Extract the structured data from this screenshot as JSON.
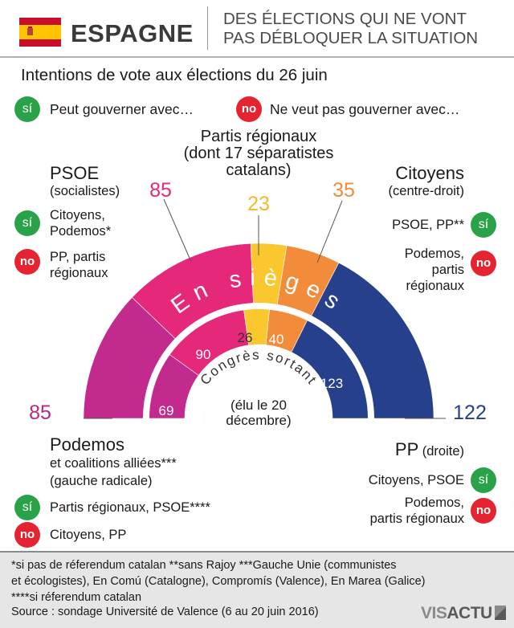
{
  "header": {
    "country": "ESPAGNE",
    "headline_1": "DES ÉLECTIONS QUI NE VONT",
    "headline_2": "PAS DÉBLOQUER LA SITUATION"
  },
  "subtitle": "Intentions de vote aux élections du 26 juin",
  "legend": {
    "si_badge": "sí",
    "si_text": "Peut gouverner avec…",
    "no_badge": "no",
    "no_text": "Ne veut pas gouverner avec…"
  },
  "parties": {
    "psoe": {
      "name": "PSOE",
      "sub": "(socialistes)",
      "si": [
        "Citoyens,",
        "Podemos*"
      ],
      "no": [
        "PP, partis",
        "régionaux"
      ]
    },
    "regional": {
      "name_1": "Partis régionaux",
      "name_2": "(dont 17 séparatistes",
      "name_3": "catalans)"
    },
    "citoyens": {
      "name": "Citoyens",
      "sub": "(centre-droit)",
      "si": [
        "PSOE, PP**"
      ],
      "no": [
        "Podemos,",
        "partis",
        "régionaux"
      ]
    },
    "podemos": {
      "name": "Podemos",
      "sub_1": "et coalitions alliées***",
      "sub_2": "(gauche radicale)",
      "si": [
        "Partis régionaux, PSOE****"
      ],
      "no": [
        "Citoyens, PP"
      ]
    },
    "pp": {
      "name": "PP",
      "sub": "(droite)",
      "si": [
        "Citoyens, PSOE"
      ],
      "no": [
        "Podemos,",
        "partis régionaux"
      ]
    }
  },
  "chart_data": {
    "type": "pie",
    "subtype": "parliament-hemicycle",
    "title": "Intentions de vote aux élections du 26 juin",
    "unit": "sièges",
    "outer_ring": {
      "label": "En sièges",
      "series": [
        {
          "name": "Podemos",
          "value": 85,
          "color": "#c22a8e"
        },
        {
          "name": "PSOE",
          "value": 85,
          "color": "#e5287a"
        },
        {
          "name": "Partis régionaux",
          "value": 23,
          "color": "#fbc72e"
        },
        {
          "name": "Citoyens",
          "value": 35,
          "color": "#f28c3b"
        },
        {
          "name": "PP",
          "value": 122,
          "color": "#27408b"
        }
      ]
    },
    "inner_ring": {
      "label": "Congrès sortant",
      "note_1": "(élu le 20",
      "note_2": "décembre)",
      "series": [
        {
          "name": "Podemos",
          "value": 69,
          "color": "#c22a8e"
        },
        {
          "name": "PSOE",
          "value": 90,
          "color": "#e5287a"
        },
        {
          "name": "Partis régionaux",
          "value": 26,
          "color": "#fbc72e"
        },
        {
          "name": "Citoyens",
          "value": 40,
          "color": "#f28c3b"
        },
        {
          "name": "PP",
          "value": 123,
          "color": "#27408b"
        }
      ]
    }
  },
  "footnotes": {
    "line_1": "*si pas de réferendum catalan **sans Rajoy ***Gauche Unie (communistes",
    "line_2": "et écologistes), En Comú (Catalogne), Compromís (Valence), En Marea (Galice)",
    "line_3": "****si réferendum catalan",
    "source": "Source : sondage Université de Valence (6 au 20 juin 2016)"
  },
  "logo": {
    "text_1": "VIS",
    "text_2": "ACTU"
  },
  "colors": {
    "si": "#2aa24a",
    "no": "#e52432",
    "flag_red": "#c8102e",
    "flag_yellow": "#ffc400"
  }
}
